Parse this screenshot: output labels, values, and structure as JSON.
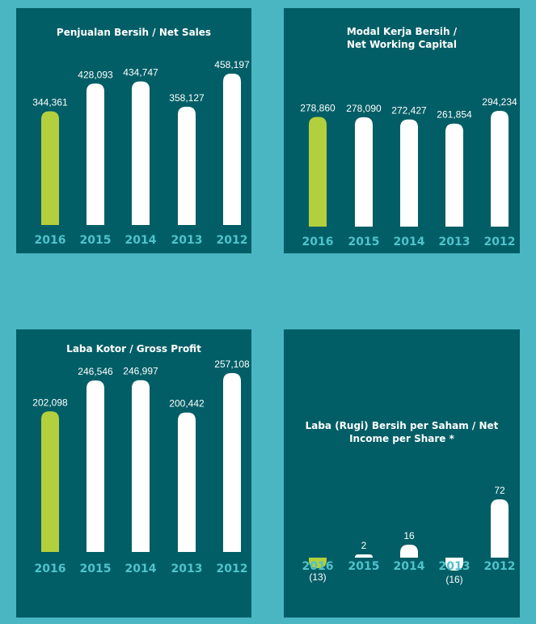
{
  "colors": {
    "background": "#4ab6c1",
    "panel": "#025e66",
    "highlight": "#b3cf3d",
    "bar": "#ffffff",
    "year_label": "#4fc3cc"
  },
  "chart_data": [
    {
      "type": "bar",
      "title_lines": [
        "Penjualan Bersih / Net Sales"
      ],
      "categories": [
        "2016",
        "2015",
        "2014",
        "2013",
        "2012"
      ],
      "values": [
        344361,
        428093,
        434747,
        358127,
        458197
      ],
      "value_labels": [
        "344,361",
        "428,093",
        "434,747",
        "358,127",
        "458,197"
      ],
      "highlight_index": 0
    },
    {
      "type": "bar",
      "title_lines": [
        "Modal Kerja Bersih /",
        "Net Working Capital"
      ],
      "categories": [
        "2016",
        "2015",
        "2014",
        "2013",
        "2012"
      ],
      "values": [
        278860,
        278090,
        272427,
        261854,
        294234
      ],
      "value_labels": [
        "278,860",
        "278,090",
        "272,427",
        "261,854",
        "294,234"
      ],
      "highlight_index": 0
    },
    {
      "type": "bar",
      "title_lines": [
        "Laba Kotor / Gross Profit"
      ],
      "categories": [
        "2016",
        "2015",
        "2014",
        "2013",
        "2012"
      ],
      "values": [
        202098,
        246546,
        246997,
        200442,
        257108
      ],
      "value_labels": [
        "202,098",
        "246,546",
        "246,997",
        "200,442",
        "257,108"
      ],
      "highlight_index": 0
    },
    {
      "type": "bar",
      "title_lines": [
        "Laba (Rugi) Bersih per Saham / Net",
        "Income per Share *"
      ],
      "categories": [
        "2016",
        "2015",
        "2014",
        "2013",
        "2012"
      ],
      "values": [
        -13,
        2,
        16,
        -16,
        72
      ],
      "value_labels": [
        "(13)",
        "2",
        "16",
        "(16)",
        "72"
      ],
      "highlight_index": 0
    }
  ]
}
